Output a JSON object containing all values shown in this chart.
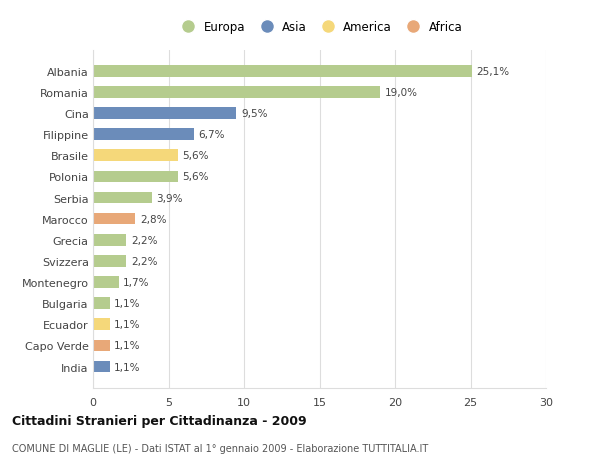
{
  "categories": [
    "Albania",
    "Romania",
    "Cina",
    "Filippine",
    "Brasile",
    "Polonia",
    "Serbia",
    "Marocco",
    "Grecia",
    "Svizzera",
    "Montenegro",
    "Bulgaria",
    "Ecuador",
    "Capo Verde",
    "India"
  ],
  "values": [
    25.1,
    19.0,
    9.5,
    6.7,
    5.6,
    5.6,
    3.9,
    2.8,
    2.2,
    2.2,
    1.7,
    1.1,
    1.1,
    1.1,
    1.1
  ],
  "labels": [
    "25,1%",
    "19,0%",
    "9,5%",
    "6,7%",
    "5,6%",
    "5,6%",
    "3,9%",
    "2,8%",
    "2,2%",
    "2,2%",
    "1,7%",
    "1,1%",
    "1,1%",
    "1,1%",
    "1,1%"
  ],
  "colors": [
    "#b5cc8e",
    "#b5cc8e",
    "#6b8cba",
    "#6b8cba",
    "#f5d87a",
    "#b5cc8e",
    "#b5cc8e",
    "#e8a878",
    "#b5cc8e",
    "#b5cc8e",
    "#b5cc8e",
    "#b5cc8e",
    "#f5d87a",
    "#e8a878",
    "#6b8cba"
  ],
  "continent_colors": {
    "Europa": "#b5cc8e",
    "Asia": "#6b8cba",
    "America": "#f5d87a",
    "Africa": "#e8a878"
  },
  "xlim": [
    0,
    30
  ],
  "xticks": [
    0,
    5,
    10,
    15,
    20,
    25,
    30
  ],
  "title": "Cittadini Stranieri per Cittadinanza - 2009",
  "subtitle": "COMUNE DI MAGLIE (LE) - Dati ISTAT al 1° gennaio 2009 - Elaborazione TUTTITALIA.IT",
  "bg_color": "#ffffff",
  "plot_bg_color": "#ffffff",
  "grid_color": "#dddddd"
}
